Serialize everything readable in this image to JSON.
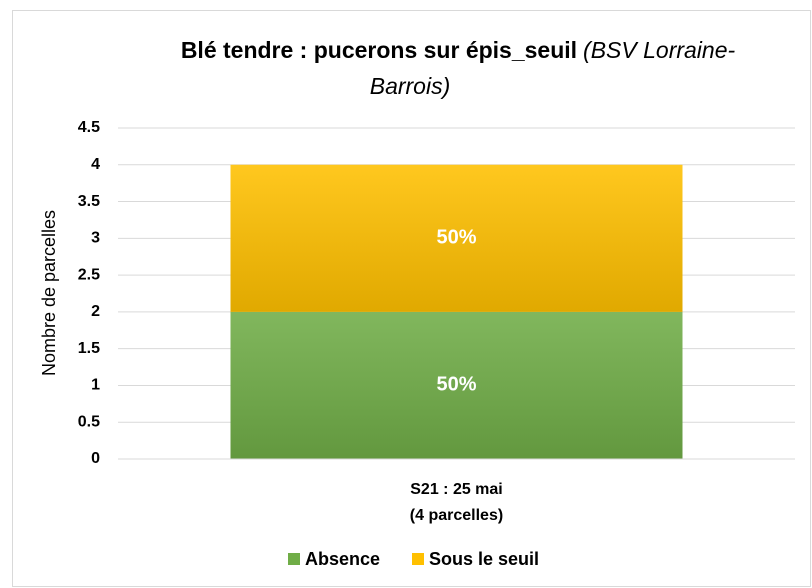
{
  "chart_data": {
    "type": "stacked_bar",
    "title": "Blé tendre : pucerons sur épis_seuil",
    "title_italic": [
      "(BSV Lorraine-",
      "Barrois)"
    ],
    "y_label": "Nombre de parcelles",
    "categories": [
      [
        "S21 : 25 mai",
        "(4 parcelles)"
      ]
    ],
    "series": [
      {
        "name": "Absence",
        "color": "#70ad47",
        "values": [
          2
        ],
        "percent_labels": [
          "50%"
        ]
      },
      {
        "name": "Sous le seuil",
        "color": "#ffc000",
        "values": [
          2
        ],
        "percent_labels": [
          "50%"
        ]
      }
    ],
    "ylim": [
      0,
      4.5
    ],
    "yticks": [
      0,
      0.5,
      1,
      1.5,
      2,
      2.5,
      3,
      3.5,
      4,
      4.5
    ],
    "grid": true,
    "legend": "bottom"
  }
}
